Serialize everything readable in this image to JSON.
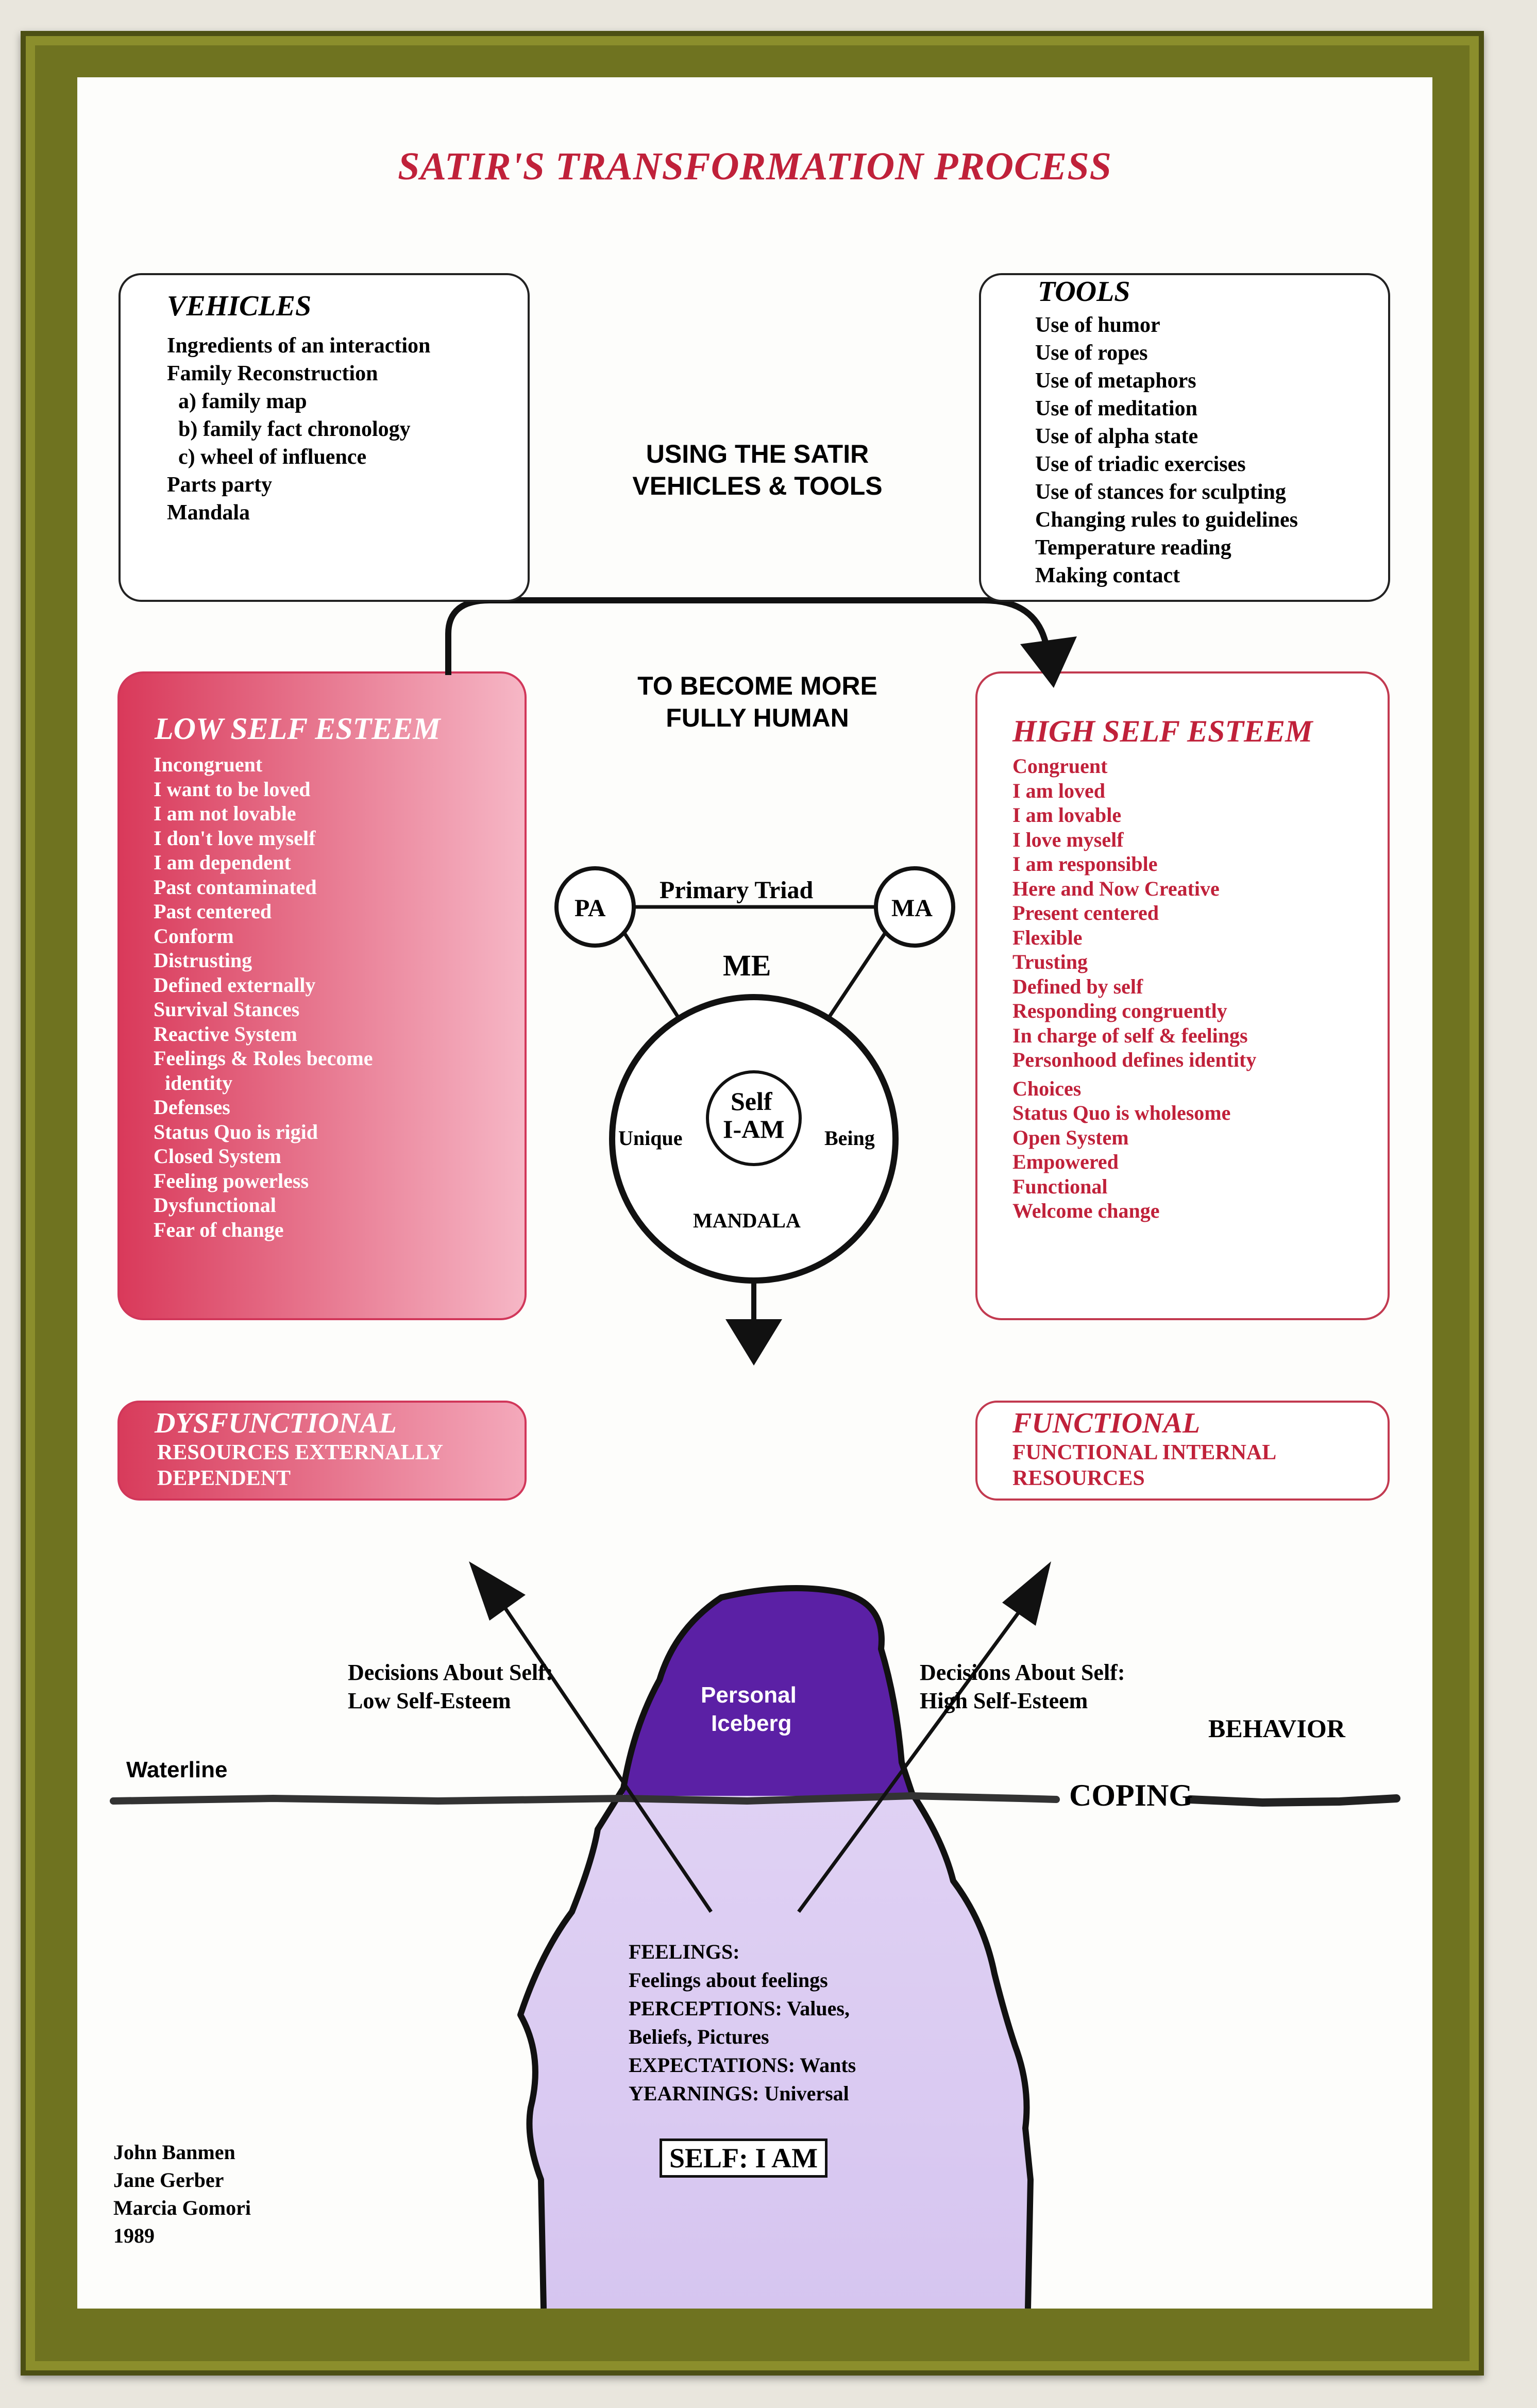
{
  "title": "SATIR'S TRANSFORMATION PROCESS",
  "vehicles": {
    "heading": "VEHICLES",
    "items": [
      "Ingredients of an interaction",
      "Family Reconstruction",
      "a) family map",
      "b) family fact chronology",
      "c) wheel of influence",
      "Parts party",
      "Mandala"
    ]
  },
  "tools": {
    "heading": "TOOLS",
    "items": [
      "Use of humor",
      "Use of ropes",
      "Use of metaphors",
      "Use of meditation",
      "Use of alpha state",
      "Use of triadic exercises",
      "Use of stances for sculpting",
      "Changing rules to guidelines",
      "Temperature reading",
      "Making contact"
    ]
  },
  "center_caption": [
    "USING THE SATIR",
    "VEHICLES & TOOLS"
  ],
  "become_caption": [
    "TO BECOME MORE",
    "FULLY HUMAN"
  ],
  "low_self_esteem": {
    "heading": "LOW SELF ESTEEM",
    "items": [
      "Incongruent",
      "I want to be loved",
      "I am not lovable",
      "I don't love myself",
      "I am dependent",
      "Past contaminated",
      "Past centered",
      "Conform",
      "Distrusting",
      "Defined externally",
      "Survival Stances",
      "Reactive System",
      "Feelings & Roles become",
      "identity",
      "Defenses",
      "Status Quo is rigid",
      "Closed System",
      "Feeling powerless",
      "Dysfunctional",
      "Fear of change"
    ]
  },
  "high_self_esteem": {
    "heading": "HIGH SELF ESTEEM",
    "items": [
      "Congruent",
      "I am loved",
      "I am lovable",
      "I love myself",
      "I am responsible",
      "Here and Now Creative",
      "Present centered",
      "Flexible",
      "Trusting",
      "Defined by self",
      "Responding congruently",
      "In charge of self & feelings",
      "Personhood defines identity",
      "Choices",
      "Status Quo is wholesome",
      "Open System",
      "Empowered",
      "Functional",
      "Welcome change"
    ]
  },
  "mandala": {
    "primary_triad": "Primary Triad",
    "pa": "PA",
    "ma": "MA",
    "me": "ME",
    "self": "Self",
    "i_am": "I-AM",
    "unique": "Unique",
    "being": "Being",
    "mandala": "MANDALA"
  },
  "dysfunctional": {
    "heading": "DYSFUNCTIONAL",
    "line1": "RESOURCES EXTERNALLY",
    "line2": "DEPENDENT"
  },
  "functional": {
    "heading": "FUNCTIONAL",
    "line1": "FUNCTIONAL INTERNAL",
    "line2": "RESOURCES"
  },
  "decisions_low": [
    "Decisions About Self:",
    "Low Self-Esteem"
  ],
  "decisions_high": [
    "Decisions About Self:",
    "High Self-Esteem"
  ],
  "iceberg": {
    "label": [
      "Personal",
      "Iceberg"
    ],
    "waterline": "Waterline",
    "behavior": "BEHAVIOR",
    "coping": "COPING",
    "layers": [
      "FEELINGS:",
      "Feelings about feelings",
      "PERCEPTIONS: Values,",
      "Beliefs, Pictures",
      "EXPECTATIONS: Wants",
      "YEARNINGS: Universal"
    ],
    "self": "SELF: I AM"
  },
  "credits": [
    "John Banmen",
    "Jane Gerber",
    "Marcia Gomori",
    "1989"
  ],
  "colors": {
    "title_red": "#c0213a",
    "low_box_gradient": [
      "#d9395a",
      "#f7bccb"
    ],
    "iceberg_top": "#5a1ea3",
    "iceberg_bottom": "#dccdf2"
  }
}
